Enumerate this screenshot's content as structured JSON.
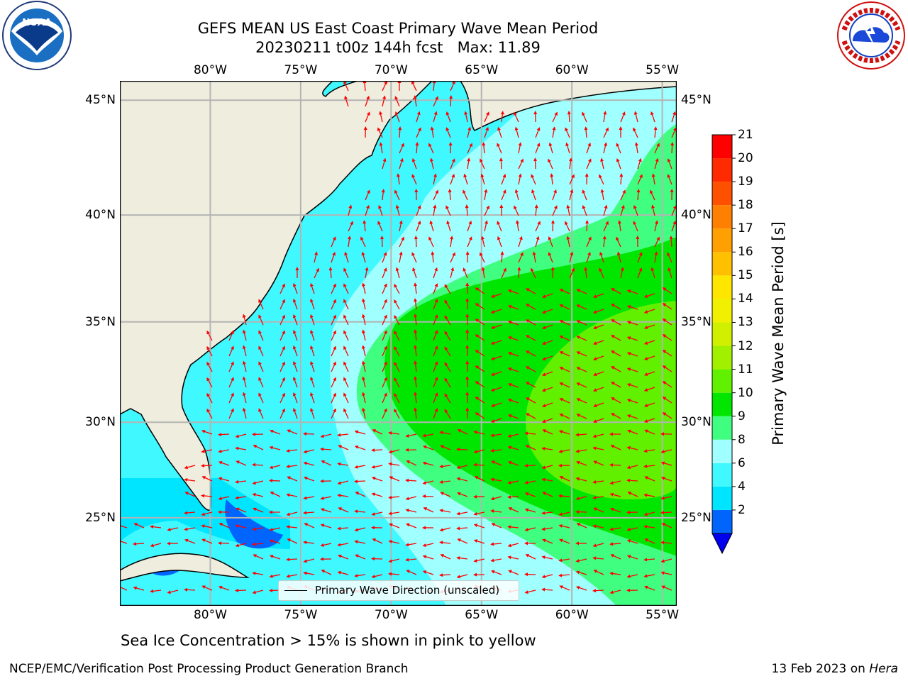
{
  "title": {
    "line1": "GEFS MEAN US East Coast Primary Wave Mean Period",
    "line2": "20230211 t00z 144h fcst   Max: 11.89"
  },
  "axes": {
    "lon_labels": [
      "80°W",
      "75°W",
      "70°W",
      "65°W",
      "60°W",
      "55°W"
    ],
    "lat_labels": [
      "45°N",
      "40°N",
      "35°N",
      "30°N",
      "25°N"
    ],
    "lon_values": [
      -80,
      -75,
      -70,
      -65,
      -60,
      -55
    ],
    "lat_values": [
      45,
      40,
      35,
      30,
      25
    ],
    "lon_range": [
      -85,
      -54.2
    ],
    "lat_range": [
      20.2,
      45.8
    ],
    "grid": true
  },
  "colorbar": {
    "label": "Primary Wave Mean Period [s]",
    "ticks": [
      "21",
      "20",
      "19",
      "18",
      "17",
      "16",
      "15",
      "14",
      "13",
      "12",
      "11",
      "10",
      "9",
      "8",
      "6",
      "4",
      "2"
    ],
    "colors_bottom_to_top": [
      "#0064ff",
      "#00e5ff",
      "#40f8ff",
      "#a0ffff",
      "#40ff80",
      "#00e600",
      "#60f000",
      "#a0f000",
      "#d0f000",
      "#f0f000",
      "#ffe600",
      "#ffc000",
      "#ffa000",
      "#ff8000",
      "#ff5000",
      "#ff2a00",
      "#ff0000"
    ],
    "extend_color": "#0000ee"
  },
  "legend": {
    "label": "Primary Wave Direction (unscaled)"
  },
  "note": "Sea Ice Concentration > 15% is shown in pink to yellow",
  "footer": {
    "left": "NCEP/EMC/Verification Post Processing Product Generation Branch",
    "date": "13 Feb 2023 on ",
    "machine": "Hera"
  },
  "colors": {
    "land": "#efedde",
    "arrow": "#ff0000",
    "grid": "#b4b4b4"
  }
}
